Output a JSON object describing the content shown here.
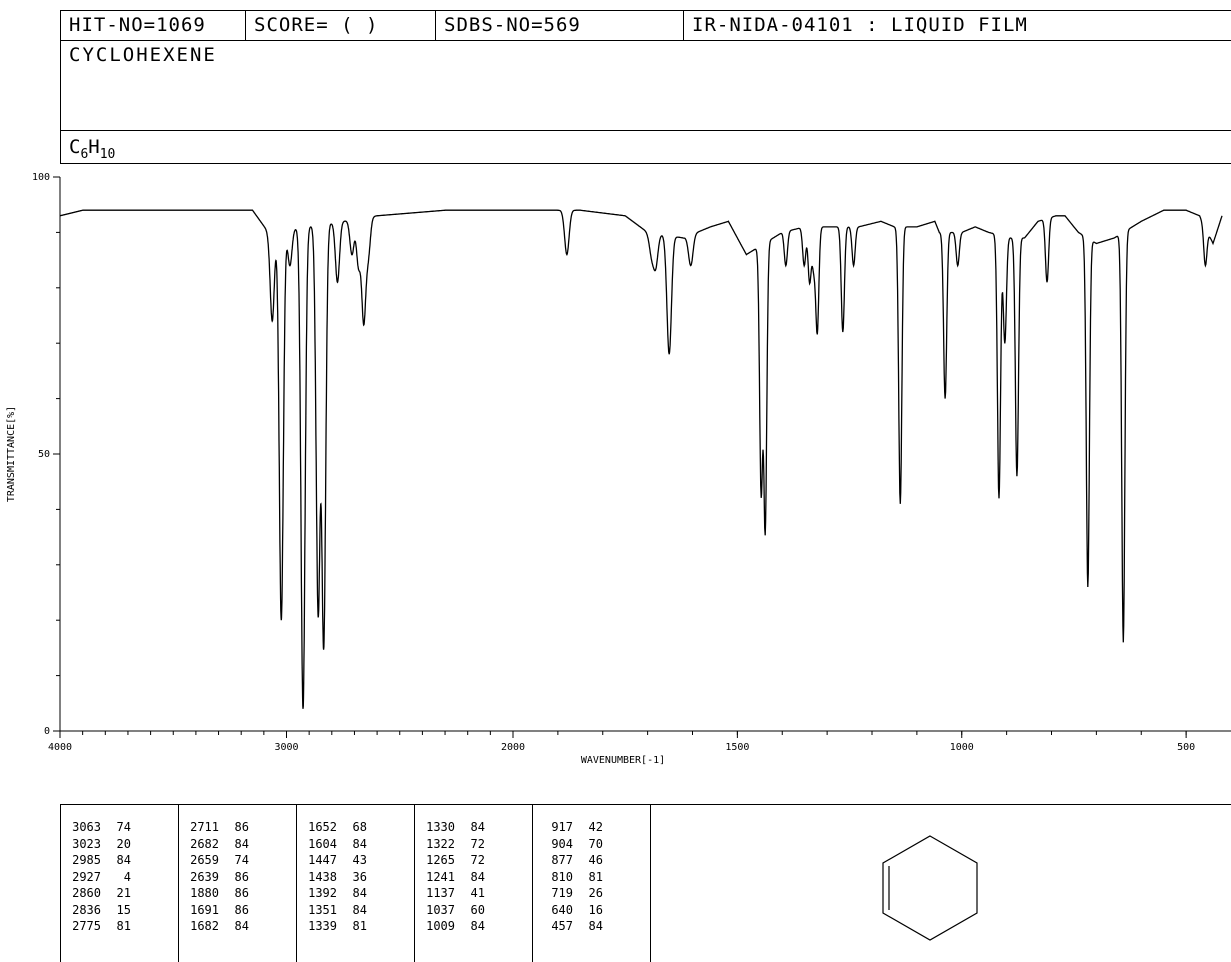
{
  "header": {
    "hit_no": "HIT-NO=1069",
    "score": "SCORE=  (   )",
    "sdbs_no": "SDBS-NO=569",
    "ir_code": "IR-NIDA-04101 : LIQUID FILM",
    "compound_name": "CYCLOHEXENE",
    "formula_c": "C",
    "formula_c_sub": "6",
    "formula_h": "H",
    "formula_h_sub": "10"
  },
  "chart_data": {
    "type": "line",
    "xlabel": "WAVENUMBER[-1]",
    "ylabel": "TRANSMITTANCE[%]",
    "xlim": [
      4000,
      400
    ],
    "ylim": [
      0,
      100
    ],
    "x_ticks": [
      "4000",
      "3000",
      "2000",
      "1500",
      "1000",
      "500"
    ],
    "y_ticks": [
      "100",
      "50",
      "0"
    ],
    "baseline": [
      [
        4000,
        93
      ],
      [
        3900,
        94
      ],
      [
        3700,
        94
      ],
      [
        3500,
        94
      ],
      [
        3300,
        94
      ],
      [
        3150,
        94
      ],
      [
        3080,
        90
      ],
      [
        2750,
        92
      ],
      [
        2600,
        93
      ],
      [
        2300,
        94
      ],
      [
        2100,
        94
      ],
      [
        1950,
        94
      ],
      [
        1850,
        94
      ],
      [
        1750,
        93
      ],
      [
        1700,
        90
      ],
      [
        1620,
        89
      ],
      [
        1560,
        91
      ],
      [
        1520,
        92
      ],
      [
        1480,
        86
      ],
      [
        1400,
        90
      ],
      [
        1350,
        91
      ],
      [
        1300,
        91
      ],
      [
        1230,
        91
      ],
      [
        1180,
        92
      ],
      [
        1150,
        91
      ],
      [
        1100,
        91
      ],
      [
        1060,
        92
      ],
      [
        1050,
        90
      ],
      [
        1000,
        90
      ],
      [
        970,
        91
      ],
      [
        940,
        90
      ],
      [
        890,
        89
      ],
      [
        860,
        89
      ],
      [
        830,
        92
      ],
      [
        790,
        93
      ],
      [
        770,
        93
      ],
      [
        740,
        90
      ],
      [
        700,
        88
      ],
      [
        660,
        89
      ],
      [
        600,
        92
      ],
      [
        550,
        94
      ],
      [
        500,
        94
      ],
      [
        470,
        93
      ],
      [
        440,
        88
      ],
      [
        420,
        93
      ]
    ],
    "peaks": [
      [
        3063,
        74
      ],
      [
        3023,
        20
      ],
      [
        2985,
        84
      ],
      [
        2927,
        4
      ],
      [
        2860,
        21
      ],
      [
        2836,
        15
      ],
      [
        2775,
        81
      ],
      [
        2711,
        86
      ],
      [
        2682,
        84
      ],
      [
        2659,
        74
      ],
      [
        2639,
        86
      ],
      [
        1880,
        86
      ],
      [
        1691,
        86
      ],
      [
        1682,
        84
      ],
      [
        1652,
        68
      ],
      [
        1604,
        84
      ],
      [
        1447,
        43
      ],
      [
        1438,
        36
      ],
      [
        1392,
        84
      ],
      [
        1351,
        84
      ],
      [
        1339,
        81
      ],
      [
        1330,
        84
      ],
      [
        1322,
        72
      ],
      [
        1265,
        72
      ],
      [
        1241,
        84
      ],
      [
        1137,
        41
      ],
      [
        1037,
        60
      ],
      [
        1009,
        84
      ],
      [
        917,
        42
      ],
      [
        904,
        70
      ],
      [
        877,
        46
      ],
      [
        810,
        81
      ],
      [
        719,
        26
      ],
      [
        640,
        16
      ],
      [
        457,
        84
      ]
    ]
  },
  "peak_table": [
    [
      [
        "3063",
        "74"
      ],
      [
        "3023",
        "20"
      ],
      [
        "2985",
        "84"
      ],
      [
        "2927",
        "4"
      ],
      [
        "2860",
        "21"
      ],
      [
        "2836",
        "15"
      ],
      [
        "2775",
        "81"
      ]
    ],
    [
      [
        "2711",
        "86"
      ],
      [
        "2682",
        "84"
      ],
      [
        "2659",
        "74"
      ],
      [
        "2639",
        "86"
      ],
      [
        "1880",
        "86"
      ],
      [
        "1691",
        "86"
      ],
      [
        "1682",
        "84"
      ]
    ],
    [
      [
        "1652",
        "68"
      ],
      [
        "1604",
        "84"
      ],
      [
        "1447",
        "43"
      ],
      [
        "1438",
        "36"
      ],
      [
        "1392",
        "84"
      ],
      [
        "1351",
        "84"
      ],
      [
        "1339",
        "81"
      ]
    ],
    [
      [
        "1330",
        "84"
      ],
      [
        "1322",
        "72"
      ],
      [
        "1265",
        "72"
      ],
      [
        "1241",
        "84"
      ],
      [
        "1137",
        "41"
      ],
      [
        "1037",
        "60"
      ],
      [
        "1009",
        "84"
      ]
    ],
    [
      [
        "917",
        "42"
      ],
      [
        "904",
        "70"
      ],
      [
        "877",
        "46"
      ],
      [
        "810",
        "81"
      ],
      [
        "719",
        "26"
      ],
      [
        "640",
        "16"
      ],
      [
        "457",
        "84"
      ]
    ]
  ]
}
